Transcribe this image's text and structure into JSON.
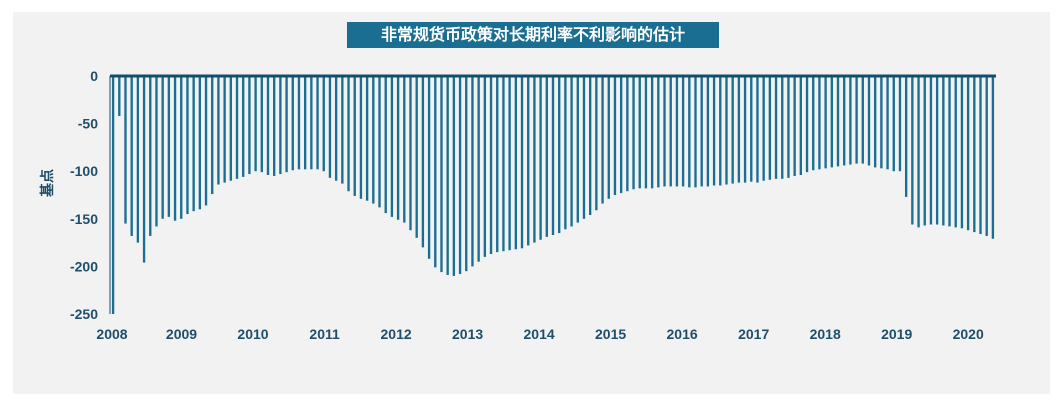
{
  "chart_data": {
    "type": "bar",
    "title": "非常规货币政策对长期利率不利影响的估计",
    "ylabel": "基点",
    "xlabel": "",
    "ylim": [
      -250,
      0
    ],
    "yticks": [
      0,
      -50,
      -100,
      -150,
      -200,
      -250
    ],
    "year_labels": [
      "2008",
      "2009",
      "2010",
      "2011",
      "2012",
      "2013",
      "2014",
      "2015",
      "2016",
      "2017",
      "2018",
      "2019",
      "2020"
    ],
    "grid": false,
    "legend": "none",
    "colors": {
      "bar": "#1a6e91",
      "axis": "#114d6d",
      "text": "#1f4e6b"
    },
    "values": [
      -250,
      -42,
      -155,
      -168,
      -175,
      -196,
      -168,
      -158,
      -150,
      -148,
      -152,
      -150,
      -145,
      -142,
      -140,
      -136,
      -124,
      -114,
      -112,
      -110,
      -108,
      -106,
      -103,
      -100,
      -101,
      -104,
      -105,
      -103,
      -101,
      -99,
      -98,
      -98,
      -98,
      -98,
      -100,
      -107,
      -110,
      -113,
      -121,
      -126,
      -129,
      -131,
      -134,
      -138,
      -144,
      -148,
      -151,
      -154,
      -162,
      -170,
      -180,
      -192,
      -201,
      -206,
      -209,
      -210,
      -208,
      -205,
      -200,
      -195,
      -190,
      -187,
      -185,
      -184,
      -183,
      -182,
      -181,
      -178,
      -175,
      -172,
      -169,
      -167,
      -165,
      -161,
      -158,
      -154,
      -150,
      -146,
      -141,
      -134,
      -129,
      -125,
      -123,
      -121,
      -119,
      -118,
      -118,
      -118,
      -117,
      -116,
      -116,
      -116,
      -116,
      -117,
      -117,
      -116,
      -116,
      -115,
      -115,
      -114,
      -113,
      -112,
      -112,
      -111,
      -112,
      -110,
      -109,
      -108,
      -108,
      -107,
      -105,
      -104,
      -101,
      -99,
      -98,
      -97,
      -96,
      -95,
      -94,
      -93,
      -92,
      -92,
      -94,
      -96,
      -97,
      -98,
      -100,
      -100,
      -127,
      -156,
      -159,
      -157,
      -156,
      -156,
      -157,
      -158,
      -159,
      -160,
      -162,
      -164,
      -166,
      -168,
      -171
    ]
  }
}
